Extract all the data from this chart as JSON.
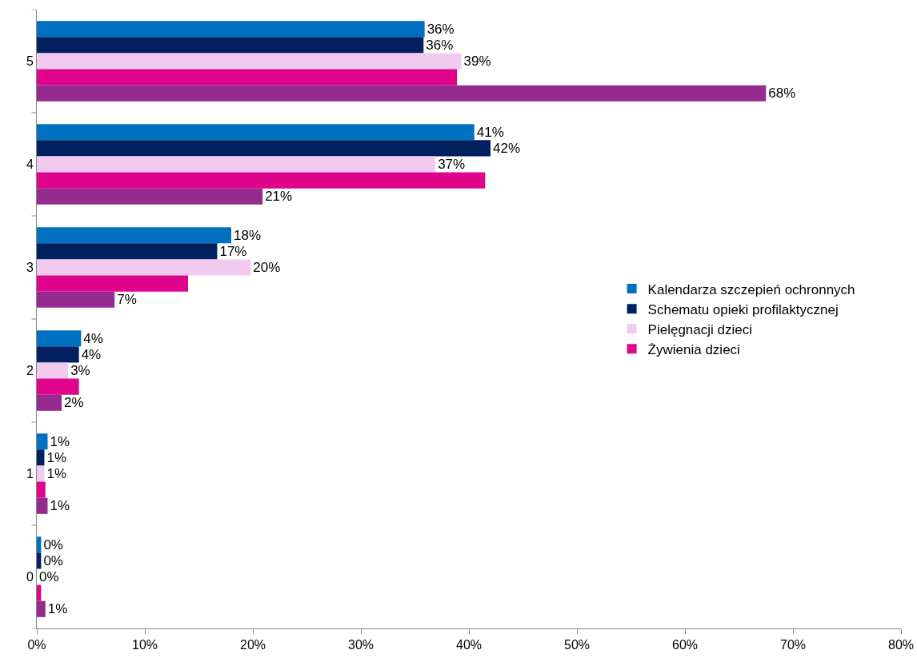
{
  "chart_data": {
    "type": "bar",
    "orientation": "horizontal",
    "categories": [
      "5",
      "4",
      "3",
      "2",
      "1",
      "0"
    ],
    "xlim": [
      0,
      80
    ],
    "xticks": [
      {
        "value": 0,
        "label": "0%"
      },
      {
        "value": 10,
        "label": "10%"
      },
      {
        "value": 20,
        "label": "20%"
      },
      {
        "value": 30,
        "label": "30%"
      },
      {
        "value": 40,
        "label": "40%"
      },
      {
        "value": 50,
        "label": "50%"
      },
      {
        "value": 60,
        "label": "60%"
      },
      {
        "value": 70,
        "label": "70%"
      },
      {
        "value": 80,
        "label": "80%"
      }
    ],
    "series": [
      {
        "name": "Kalendarza szczepień ochronnych",
        "color": "#0070c0",
        "values": [
          35.9,
          40.5,
          18.0,
          4.1,
          1.0,
          0.4
        ],
        "value_labels": [
          "36%",
          "41%",
          "18%",
          "4%",
          "1%",
          "0%"
        ]
      },
      {
        "name": "Schematu opieki profilaktycznej",
        "color": "#002060",
        "values": [
          35.8,
          42.0,
          16.7,
          3.9,
          0.7,
          0.4
        ],
        "value_labels": [
          "36%",
          "42%",
          "17%",
          "4%",
          "1%",
          "0%"
        ]
      },
      {
        "name": "Pielęgnacji dzieci",
        "color": "#f2c9ef",
        "values": [
          39.3,
          36.9,
          19.8,
          2.9,
          0.7,
          0
        ],
        "value_labels": [
          "39%",
          "37%",
          "20%",
          "3%",
          "1%",
          "0%"
        ]
      },
      {
        "name": "Żywienia dzieci",
        "color": "#e0048c",
        "values": [
          38.9,
          41.5,
          14.0,
          3.9,
          0.8,
          0.4
        ],
        "value_labels": [
          null,
          null,
          null,
          null,
          null,
          null
        ]
      },
      {
        "color": "#952a8f",
        "values": [
          67.5,
          20.9,
          7.2,
          2.3,
          1.0,
          0.8
        ],
        "value_labels": [
          "68%",
          "21%",
          "7%",
          "2%",
          "1%",
          "1%"
        ]
      }
    ],
    "legend": "right",
    "grid": false
  }
}
